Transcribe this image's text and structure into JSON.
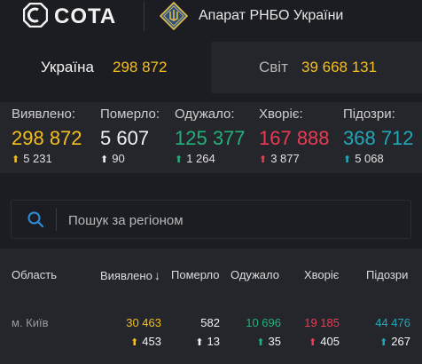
{
  "header": {
    "brand": "COTA",
    "org": "Апарат РНБО України"
  },
  "tabs": {
    "ukraine": {
      "label": "Україна",
      "value": "298 872"
    },
    "world": {
      "label": "Світ",
      "value": "39 668 131"
    }
  },
  "stats": [
    {
      "label": "Виявлено:",
      "value": "298 872",
      "delta": "5 231",
      "color": "#f5bf1c",
      "arrow_color": "#f5bf1c"
    },
    {
      "label": "Померло:",
      "value": "5 607",
      "delta": "90",
      "color": "#f2f2f2",
      "arrow_color": "#f2f2f2"
    },
    {
      "label": "Одужало:",
      "value": "125 377",
      "delta": "1 264",
      "color": "#22b07a",
      "arrow_color": "#22b07a"
    },
    {
      "label": "Хворіє:",
      "value": "167 888",
      "delta": "3 877",
      "color": "#ea3b52",
      "arrow_color": "#ea3b52"
    },
    {
      "label": "Підозри:",
      "value": "368 712",
      "delta": "5 068",
      "color": "#20a7b6",
      "arrow_color": "#20a7b6"
    }
  ],
  "search": {
    "placeholder": "Пошук за регіоном",
    "value": "",
    "icon": "search-icon"
  },
  "table": {
    "headers": {
      "region": "Область",
      "detected": "Виявлено",
      "deaths": "Померло",
      "recovered": "Одужало",
      "sick": "Хворіє",
      "suspected": "Підозри"
    },
    "rows": [
      {
        "region": "м. Київ",
        "detected": "30 463",
        "detected_delta": "453",
        "deaths": "582",
        "deaths_delta": "13",
        "recovered": "10 696",
        "recovered_delta": "35",
        "sick": "19 185",
        "sick_delta": "405",
        "suspected": "44 476",
        "suspected_delta": "267"
      }
    ]
  }
}
